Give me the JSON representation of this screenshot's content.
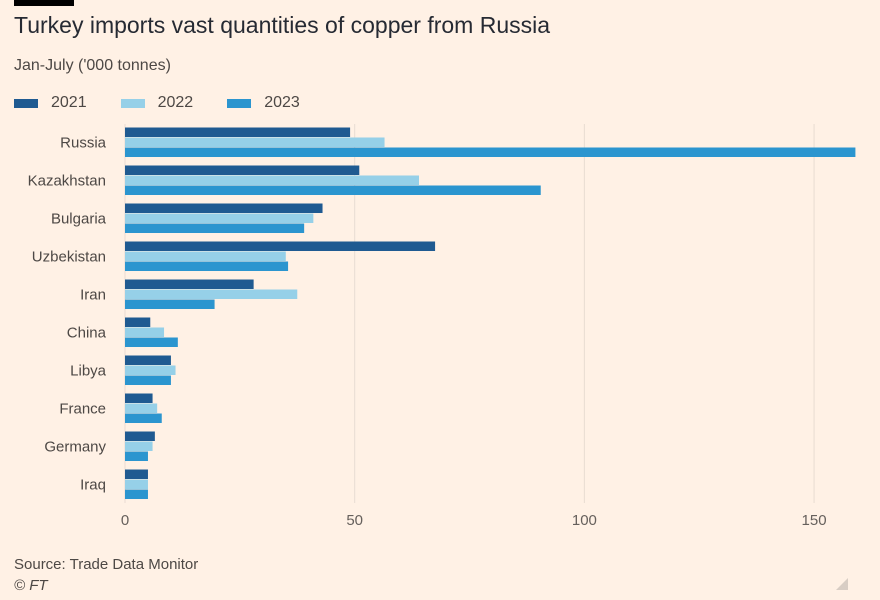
{
  "header": {
    "title": "Turkey imports vast quantities of copper from Russia",
    "subtitle": "Jan-July ('000 tonnes)"
  },
  "colors": {
    "background": "#fff1e5",
    "series_2021": "#1f5a91",
    "series_2022": "#96d0e8",
    "series_2023": "#2b95cf",
    "gridline": "#e8dcd2"
  },
  "footer": {
    "source": "Source: Trade Data Monitor",
    "credit": "© FT"
  },
  "chart_data": {
    "type": "bar",
    "orientation": "horizontal",
    "title": "Turkey imports vast quantities of copper from Russia",
    "subtitle": "Jan-July ('000 tonnes)",
    "xlabel": "",
    "ylabel": "",
    "xlim": [
      0,
      160
    ],
    "ticks": [
      0,
      50,
      100,
      150
    ],
    "grid": true,
    "legend_position": "top-left",
    "categories": [
      "Russia",
      "Kazakhstan",
      "Bulgaria",
      "Uzbekistan",
      "Iran",
      "China",
      "Libya",
      "France",
      "Germany",
      "Iraq"
    ],
    "series": [
      {
        "name": "2021",
        "color": "#1f5a91",
        "values": [
          49,
          51,
          43,
          67.5,
          28,
          5.5,
          10,
          6,
          6.5,
          5
        ]
      },
      {
        "name": "2022",
        "color": "#96d0e8",
        "values": [
          56.5,
          64,
          41,
          35,
          37.5,
          8.5,
          11,
          7,
          6,
          5
        ]
      },
      {
        "name": "2023",
        "color": "#2b95cf",
        "values": [
          159,
          90.5,
          39,
          35.5,
          19.5,
          11.5,
          10,
          8,
          5,
          5
        ]
      }
    ]
  }
}
